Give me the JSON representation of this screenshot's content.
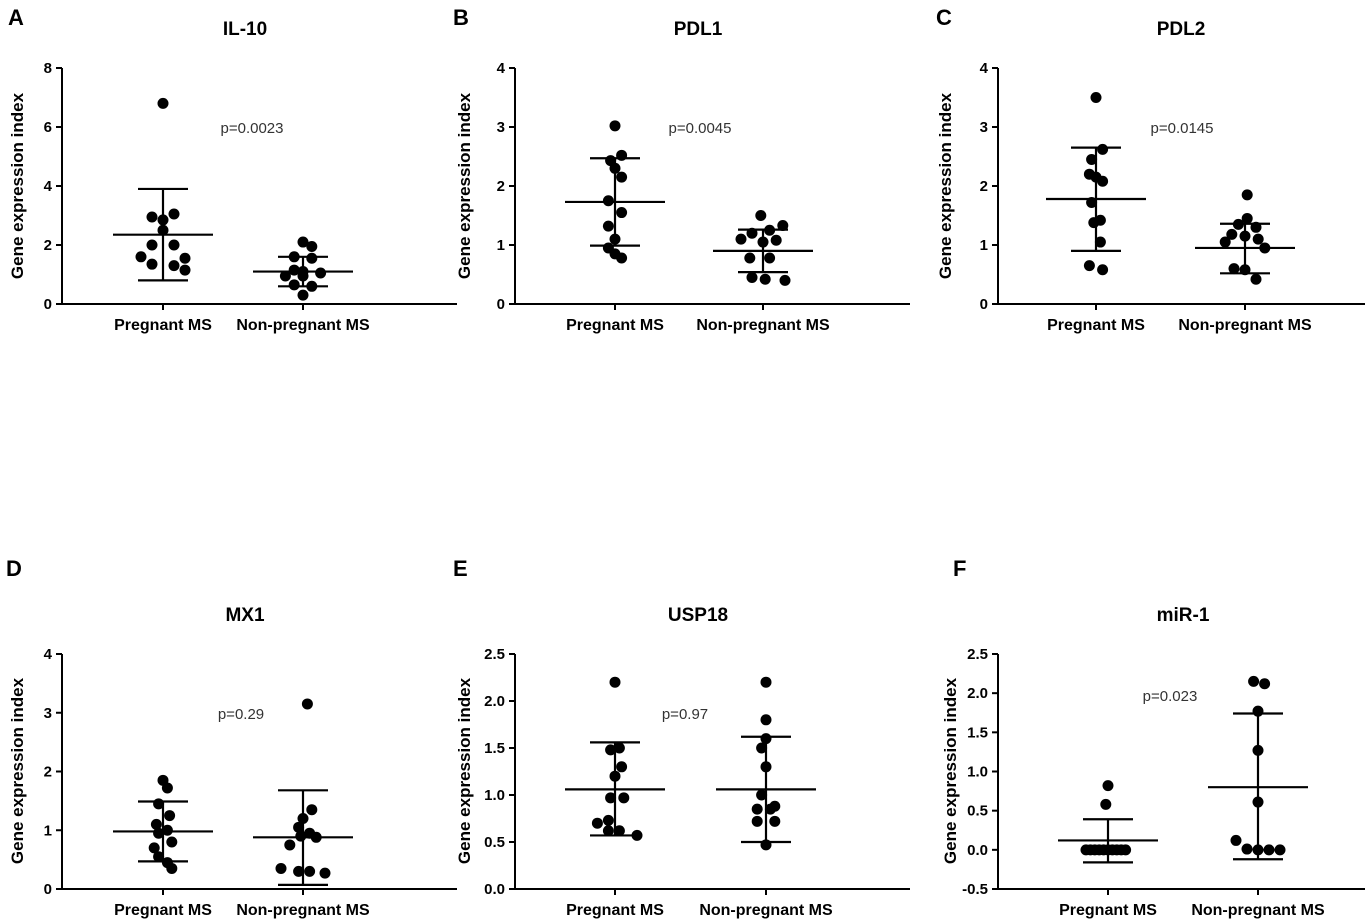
{
  "figure": {
    "point_color": "#000000",
    "line_color": "#000000",
    "y_axis_label": "Gene expression index"
  },
  "chart_data": [
    {
      "type": "scatter",
      "letter": "A",
      "title": "IL-10",
      "ylabel": "Gene expression index",
      "ylim": [
        0,
        8
      ],
      "yticks": [
        0,
        2,
        4,
        6,
        8
      ],
      "ytick_labels": [
        "0",
        "2",
        "4",
        "6",
        "8"
      ],
      "categories": [
        "Pregnant MS",
        "Non-pregnant MS"
      ],
      "p_value": "p=0.0023",
      "groups": [
        {
          "name": "Pregnant MS",
          "mean": 2.35,
          "sd_low": 0.8,
          "sd_high": 3.9,
          "points": [
            {
              "dx": 0.0,
              "y": 6.8
            },
            {
              "dx": -0.5,
              "y": 2.95
            },
            {
              "dx": 0.5,
              "y": 3.05
            },
            {
              "dx": 0.0,
              "y": 2.85
            },
            {
              "dx": 0.0,
              "y": 2.5
            },
            {
              "dx": -0.5,
              "y": 2.0
            },
            {
              "dx": 0.5,
              "y": 2.0
            },
            {
              "dx": -1.0,
              "y": 1.6
            },
            {
              "dx": 1.0,
              "y": 1.55
            },
            {
              "dx": -0.5,
              "y": 1.35
            },
            {
              "dx": 0.5,
              "y": 1.3
            },
            {
              "dx": 1.0,
              "y": 1.15
            }
          ]
        },
        {
          "name": "Non-pregnant MS",
          "mean": 1.1,
          "sd_low": 0.6,
          "sd_high": 1.6,
          "points": [
            {
              "dx": 0.0,
              "y": 2.1
            },
            {
              "dx": 0.4,
              "y": 1.95
            },
            {
              "dx": -0.4,
              "y": 1.6
            },
            {
              "dx": 0.4,
              "y": 1.55
            },
            {
              "dx": -0.4,
              "y": 1.15
            },
            {
              "dx": 0.0,
              "y": 1.1
            },
            {
              "dx": 0.8,
              "y": 1.05
            },
            {
              "dx": -0.8,
              "y": 0.95
            },
            {
              "dx": 0.0,
              "y": 0.95
            },
            {
              "dx": -0.4,
              "y": 0.65
            },
            {
              "dx": 0.4,
              "y": 0.6
            },
            {
              "dx": 0.0,
              "y": 0.3
            }
          ]
        }
      ]
    },
    {
      "type": "scatter",
      "letter": "B",
      "title": "PDL1",
      "ylabel": "Gene expression index",
      "ylim": [
        0,
        4
      ],
      "yticks": [
        0,
        1,
        2,
        3,
        4
      ],
      "ytick_labels": [
        "0",
        "1",
        "2",
        "3",
        "4"
      ],
      "categories": [
        "Pregnant MS",
        "Non-pregnant MS"
      ],
      "p_value": "p=0.0045",
      "groups": [
        {
          "name": "Pregnant MS",
          "mean": 1.73,
          "sd_low": 0.99,
          "sd_high": 2.47,
          "points": [
            {
              "dx": 0.0,
              "y": 3.02
            },
            {
              "dx": 0.3,
              "y": 2.52
            },
            {
              "dx": -0.2,
              "y": 2.43
            },
            {
              "dx": 0.0,
              "y": 2.3
            },
            {
              "dx": 0.3,
              "y": 2.15
            },
            {
              "dx": -0.3,
              "y": 1.75
            },
            {
              "dx": 0.3,
              "y": 1.55
            },
            {
              "dx": -0.3,
              "y": 1.32
            },
            {
              "dx": 0.0,
              "y": 1.1
            },
            {
              "dx": -0.3,
              "y": 0.95
            },
            {
              "dx": 0.0,
              "y": 0.85
            },
            {
              "dx": 0.3,
              "y": 0.78
            }
          ]
        },
        {
          "name": "Non-pregnant MS",
          "mean": 0.9,
          "sd_low": 0.54,
          "sd_high": 1.26,
          "points": [
            {
              "dx": -0.1,
              "y": 1.5
            },
            {
              "dx": 0.9,
              "y": 1.33
            },
            {
              "dx": -0.5,
              "y": 1.2
            },
            {
              "dx": 0.3,
              "y": 1.25
            },
            {
              "dx": -1.0,
              "y": 1.1
            },
            {
              "dx": 0.0,
              "y": 1.05
            },
            {
              "dx": 0.6,
              "y": 1.08
            },
            {
              "dx": -0.6,
              "y": 0.78
            },
            {
              "dx": 0.3,
              "y": 0.78
            },
            {
              "dx": -0.5,
              "y": 0.45
            },
            {
              "dx": 0.1,
              "y": 0.42
            },
            {
              "dx": 1.0,
              "y": 0.4
            }
          ]
        }
      ]
    },
    {
      "type": "scatter",
      "letter": "C",
      "title": "PDL2",
      "ylabel": "Gene expression index",
      "ylim": [
        0,
        4
      ],
      "yticks": [
        0,
        1,
        2,
        3,
        4
      ],
      "ytick_labels": [
        "0",
        "1",
        "2",
        "3",
        "4"
      ],
      "categories": [
        "Pregnant MS",
        "Non-pregnant MS"
      ],
      "p_value": "p=0.0145",
      "groups": [
        {
          "name": "Pregnant MS",
          "mean": 1.78,
          "sd_low": 0.9,
          "sd_high": 2.65,
          "points": [
            {
              "dx": 0.0,
              "y": 3.5
            },
            {
              "dx": 0.3,
              "y": 2.62
            },
            {
              "dx": -0.2,
              "y": 2.45
            },
            {
              "dx": -0.3,
              "y": 2.2
            },
            {
              "dx": 0.0,
              "y": 2.15
            },
            {
              "dx": 0.3,
              "y": 2.08
            },
            {
              "dx": -0.2,
              "y": 1.72
            },
            {
              "dx": 0.2,
              "y": 1.42
            },
            {
              "dx": -0.1,
              "y": 1.38
            },
            {
              "dx": 0.2,
              "y": 1.05
            },
            {
              "dx": -0.3,
              "y": 0.65
            },
            {
              "dx": 0.3,
              "y": 0.58
            }
          ]
        },
        {
          "name": "Non-pregnant MS",
          "mean": 0.95,
          "sd_low": 0.52,
          "sd_high": 1.36,
          "points": [
            {
              "dx": 0.1,
              "y": 1.85
            },
            {
              "dx": 0.1,
              "y": 1.45
            },
            {
              "dx": 0.5,
              "y": 1.3
            },
            {
              "dx": -0.3,
              "y": 1.35
            },
            {
              "dx": -0.6,
              "y": 1.18
            },
            {
              "dx": 0.0,
              "y": 1.15
            },
            {
              "dx": 0.6,
              "y": 1.1
            },
            {
              "dx": -0.9,
              "y": 1.05
            },
            {
              "dx": 0.9,
              "y": 0.95
            },
            {
              "dx": -0.5,
              "y": 0.6
            },
            {
              "dx": 0.0,
              "y": 0.58
            },
            {
              "dx": 0.5,
              "y": 0.42
            }
          ]
        }
      ]
    },
    {
      "type": "scatter",
      "letter": "D",
      "title": "MX1",
      "ylabel": "Gene expression index",
      "ylim": [
        0,
        4
      ],
      "yticks": [
        0,
        1,
        2,
        3,
        4
      ],
      "ytick_labels": [
        "0",
        "1",
        "2",
        "3",
        "4"
      ],
      "categories": [
        "Pregnant MS",
        "Non-pregnant MS"
      ],
      "p_value": "p=0.29",
      "groups": [
        {
          "name": "Pregnant MS",
          "mean": 0.98,
          "sd_low": 0.47,
          "sd_high": 1.49,
          "points": [
            {
              "dx": 0.0,
              "y": 1.85
            },
            {
              "dx": 0.2,
              "y": 1.72
            },
            {
              "dx": -0.2,
              "y": 1.45
            },
            {
              "dx": 0.3,
              "y": 1.25
            },
            {
              "dx": -0.3,
              "y": 1.1
            },
            {
              "dx": 0.2,
              "y": 1.0
            },
            {
              "dx": -0.2,
              "y": 0.95
            },
            {
              "dx": 0.4,
              "y": 0.8
            },
            {
              "dx": -0.4,
              "y": 0.7
            },
            {
              "dx": -0.2,
              "y": 0.55
            },
            {
              "dx": 0.2,
              "y": 0.45
            },
            {
              "dx": 0.4,
              "y": 0.35
            }
          ]
        },
        {
          "name": "Non-pregnant MS",
          "mean": 0.88,
          "sd_low": 0.07,
          "sd_high": 1.68,
          "points": [
            {
              "dx": 0.2,
              "y": 3.15
            },
            {
              "dx": 0.4,
              "y": 1.35
            },
            {
              "dx": 0.0,
              "y": 1.2
            },
            {
              "dx": -0.2,
              "y": 1.05
            },
            {
              "dx": 0.3,
              "y": 0.95
            },
            {
              "dx": -0.1,
              "y": 0.9
            },
            {
              "dx": 0.6,
              "y": 0.88
            },
            {
              "dx": -0.6,
              "y": 0.75
            },
            {
              "dx": -1.0,
              "y": 0.35
            },
            {
              "dx": -0.2,
              "y": 0.3
            },
            {
              "dx": 0.3,
              "y": 0.3
            },
            {
              "dx": 1.0,
              "y": 0.27
            }
          ]
        }
      ]
    },
    {
      "type": "scatter",
      "letter": "E",
      "title": "USP18",
      "ylabel": "Gene expression index",
      "ylim": [
        0,
        2.5
      ],
      "yticks": [
        0,
        0.5,
        1,
        1.5,
        2,
        2.5
      ],
      "ytick_labels": [
        "0.0",
        "0.5",
        "1.0",
        "1.5",
        "2.0",
        "2.5"
      ],
      "categories": [
        "Pregnant MS",
        "Non-pregnant MS"
      ],
      "p_value": "p=0.97",
      "groups": [
        {
          "name": "Pregnant MS",
          "mean": 1.06,
          "sd_low": 0.57,
          "sd_high": 1.56,
          "points": [
            {
              "dx": 0.0,
              "y": 2.2
            },
            {
              "dx": -0.2,
              "y": 1.48
            },
            {
              "dx": 0.2,
              "y": 1.5
            },
            {
              "dx": 0.3,
              "y": 1.3
            },
            {
              "dx": 0.0,
              "y": 1.2
            },
            {
              "dx": -0.2,
              "y": 0.97
            },
            {
              "dx": 0.4,
              "y": 0.97
            },
            {
              "dx": -0.8,
              "y": 0.7
            },
            {
              "dx": -0.3,
              "y": 0.73
            },
            {
              "dx": -0.3,
              "y": 0.62
            },
            {
              "dx": 0.2,
              "y": 0.62
            },
            {
              "dx": 1.0,
              "y": 0.57
            }
          ]
        },
        {
          "name": "Non-pregnant MS",
          "mean": 1.06,
          "sd_low": 0.5,
          "sd_high": 1.62,
          "points": [
            {
              "dx": 0.0,
              "y": 2.2
            },
            {
              "dx": 0.0,
              "y": 1.8
            },
            {
              "dx": 0.0,
              "y": 1.6
            },
            {
              "dx": -0.2,
              "y": 1.5
            },
            {
              "dx": 0.0,
              "y": 1.3
            },
            {
              "dx": -0.2,
              "y": 1.0
            },
            {
              "dx": 0.4,
              "y": 0.88
            },
            {
              "dx": -0.4,
              "y": 0.85
            },
            {
              "dx": 0.2,
              "y": 0.85
            },
            {
              "dx": -0.4,
              "y": 0.72
            },
            {
              "dx": 0.4,
              "y": 0.72
            },
            {
              "dx": 0.0,
              "y": 0.47
            }
          ]
        }
      ]
    },
    {
      "type": "scatter",
      "letter": "F",
      "title": "miR-1",
      "ylabel": "Gene expression index",
      "ylim": [
        -0.5,
        2.5
      ],
      "yticks": [
        -0.5,
        0,
        0.5,
        1,
        1.5,
        2,
        2.5
      ],
      "ytick_labels": [
        "-0.5",
        "0.0",
        "0.5",
        "1.0",
        "1.5",
        "2.0",
        "2.5"
      ],
      "categories": [
        "Pregnant MS",
        "Non-pregnant MS"
      ],
      "p_value": "p=0.023",
      "groups": [
        {
          "name": "Pregnant MS",
          "mean": 0.12,
          "sd_low": -0.16,
          "sd_high": 0.39,
          "points": [
            {
              "dx": 0.0,
              "y": 0.82
            },
            {
              "dx": -0.1,
              "y": 0.58
            },
            {
              "dx": -1.0,
              "y": 0.0
            },
            {
              "dx": -0.8,
              "y": 0.0
            },
            {
              "dx": -0.6,
              "y": 0.0
            },
            {
              "dx": -0.4,
              "y": 0.0
            },
            {
              "dx": -0.2,
              "y": 0.0
            },
            {
              "dx": 0.0,
              "y": 0.0
            },
            {
              "dx": 0.2,
              "y": 0.0
            },
            {
              "dx": 0.4,
              "y": 0.0
            },
            {
              "dx": 0.6,
              "y": 0.0
            },
            {
              "dx": 0.8,
              "y": 0.0
            }
          ]
        },
        {
          "name": "Non-pregnant MS",
          "mean": 0.8,
          "sd_low": -0.12,
          "sd_high": 1.74,
          "points": [
            {
              "dx": -0.2,
              "y": 2.15
            },
            {
              "dx": 0.3,
              "y": 2.12
            },
            {
              "dx": 0.0,
              "y": 1.77
            },
            {
              "dx": 0.0,
              "y": 1.27
            },
            {
              "dx": 0.0,
              "y": 0.61
            },
            {
              "dx": -1.0,
              "y": 0.12
            },
            {
              "dx": -0.5,
              "y": 0.01
            },
            {
              "dx": 0.0,
              "y": 0.0
            },
            {
              "dx": 0.5,
              "y": 0.0
            },
            {
              "dx": 1.0,
              "y": 0.0
            }
          ]
        }
      ]
    }
  ]
}
